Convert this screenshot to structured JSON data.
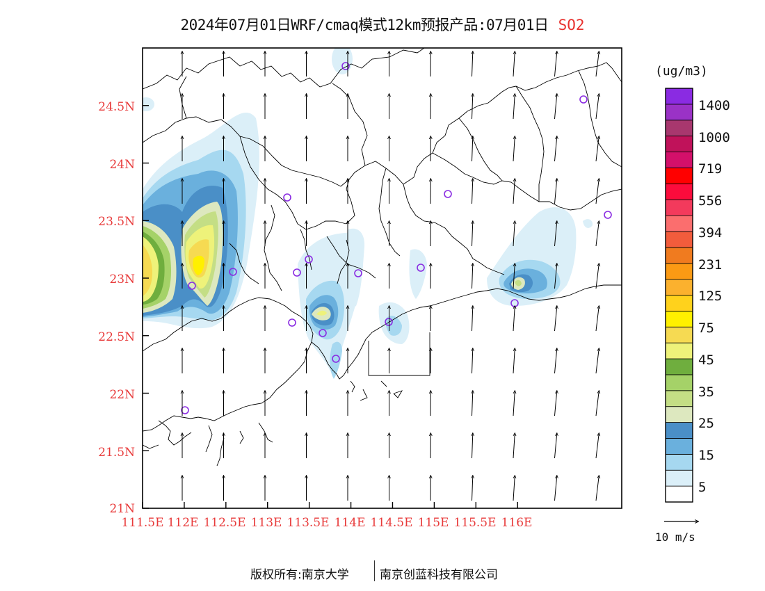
{
  "title": {
    "text": "2024年07月01日WRF/cmaq模式12km预报产品:07月01日",
    "species": "SO2",
    "species_color": "#e8322e"
  },
  "axes": {
    "lat_labels": [
      "24.5N",
      "24N",
      "23.5N",
      "23N",
      "22.5N",
      "22N",
      "21.5N",
      "21N"
    ],
    "lat_values": [
      24.5,
      24.0,
      23.5,
      23.0,
      22.5,
      22.0,
      21.5,
      21.0
    ],
    "lon_labels": [
      "111.5E",
      "112E",
      "112.5E",
      "113E",
      "113.5E",
      "114E",
      "114.5E",
      "115E",
      "115.5E",
      "116E"
    ],
    "lon_values": [
      111.5,
      112.0,
      112.5,
      113.0,
      113.5,
      114.0,
      114.5,
      115.0,
      115.5,
      116.0
    ],
    "lon_range": [
      111.5,
      117.25
    ],
    "lat_range": [
      21.0,
      25.0
    ],
    "label_color": "#e83a3a"
  },
  "colorbar": {
    "unit": "(ug/m3)",
    "levels": [
      "1400",
      "1000",
      "719",
      "556",
      "394",
      "231",
      "125",
      "75",
      "45",
      "35",
      "25",
      "15",
      "5"
    ],
    "colors_bottom_to_top": [
      "#ffffff",
      "#dbeff8",
      "#a6d8f0",
      "#6ab0dd",
      "#4a8fc7",
      "#dde8bf",
      "#c4de85",
      "#a5d268",
      "#6fae3e",
      "#eef27a",
      "#f6da52",
      "#fff000",
      "#ffd21c",
      "#fbb12e",
      "#fb9a14",
      "#f07b1f",
      "#f25c3c",
      "#fb6e6e",
      "#f33a5c",
      "#fc0c3c",
      "#ff0000",
      "#d3106a",
      "#c0125a",
      "#a8376e",
      "#9a32c6",
      "#8a2be2"
    ]
  },
  "wind_reference": {
    "label": "10 m/s"
  },
  "stations": {
    "marker_color": "#8a2be2"
  },
  "footer": {
    "left": "版权所有:南京大学",
    "right": "南京创蓝科技有限公司"
  }
}
